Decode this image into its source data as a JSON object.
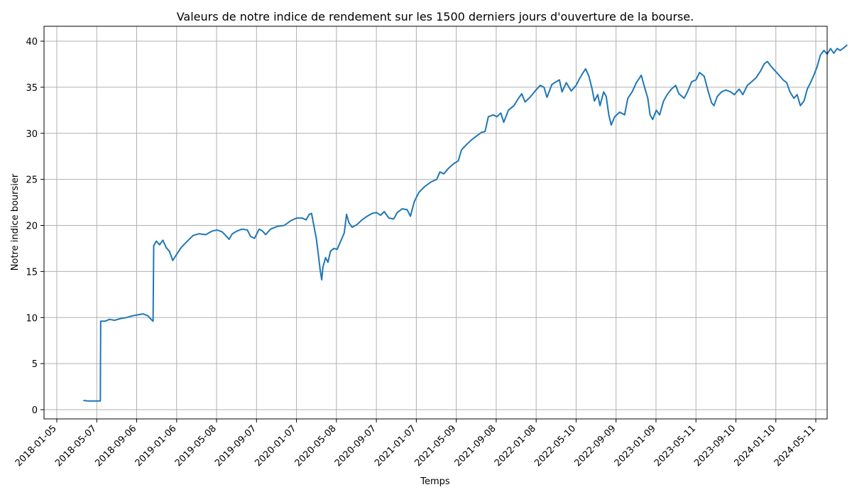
{
  "chart_data": {
    "type": "line",
    "title": "Valeurs de notre indice de rendement sur les 1500 derniers jours d'ouverture de la bourse.",
    "xlabel": "Temps",
    "ylabel": "Notre indice boursier",
    "grid": true,
    "xlim": [
      "2018-01-05",
      "2024-05-11"
    ],
    "ylim": [
      -1,
      41.6
    ],
    "x_ticks": [
      "2018-01-05",
      "2018-05-07",
      "2018-09-06",
      "2019-01-06",
      "2019-05-08",
      "2019-09-07",
      "2020-01-07",
      "2020-05-08",
      "2020-09-07",
      "2021-01-07",
      "2021-05-09",
      "2021-09-08",
      "2022-01-08",
      "2022-05-10",
      "2022-09-09",
      "2023-01-09",
      "2023-05-11",
      "2023-09-10",
      "2024-01-10",
      "2024-05-11"
    ],
    "y_ticks": [
      0,
      5,
      10,
      15,
      20,
      25,
      30,
      35,
      40
    ],
    "series": [
      {
        "color": "#1f77b4",
        "points": [
          [
            "2018-03-27",
            1.0
          ],
          [
            "2018-04-10",
            0.95
          ],
          [
            "2018-04-25",
            0.95
          ],
          [
            "2018-05-10",
            0.95
          ],
          [
            "2018-05-18",
            0.95
          ],
          [
            "2018-05-19",
            9.6
          ],
          [
            "2018-06-01",
            9.6
          ],
          [
            "2018-06-15",
            9.8
          ],
          [
            "2018-07-01",
            9.7
          ],
          [
            "2018-07-20",
            9.9
          ],
          [
            "2018-08-05",
            10.0
          ],
          [
            "2018-08-25",
            10.2
          ],
          [
            "2018-09-10",
            10.3
          ],
          [
            "2018-09-25",
            10.4
          ],
          [
            "2018-10-10",
            10.2
          ],
          [
            "2018-10-20",
            9.8
          ],
          [
            "2018-10-26",
            9.6
          ],
          [
            "2018-10-28",
            17.8
          ],
          [
            "2018-11-05",
            18.3
          ],
          [
            "2018-11-15",
            17.9
          ],
          [
            "2018-11-25",
            18.4
          ],
          [
            "2018-12-05",
            17.6
          ],
          [
            "2018-12-15",
            17.2
          ],
          [
            "2018-12-25",
            16.2
          ],
          [
            "2019-01-05",
            16.8
          ],
          [
            "2019-01-20",
            17.6
          ],
          [
            "2019-02-05",
            18.2
          ],
          [
            "2019-02-25",
            18.9
          ],
          [
            "2019-03-15",
            19.1
          ],
          [
            "2019-04-05",
            19.0
          ],
          [
            "2019-04-25",
            19.4
          ],
          [
            "2019-05-10",
            19.5
          ],
          [
            "2019-05-25",
            19.3
          ],
          [
            "2019-06-05",
            18.9
          ],
          [
            "2019-06-15",
            18.5
          ],
          [
            "2019-06-25",
            19.1
          ],
          [
            "2019-07-10",
            19.4
          ],
          [
            "2019-07-25",
            19.6
          ],
          [
            "2019-08-10",
            19.5
          ],
          [
            "2019-08-20",
            18.8
          ],
          [
            "2019-09-01",
            18.6
          ],
          [
            "2019-09-15",
            19.6
          ],
          [
            "2019-09-25",
            19.4
          ],
          [
            "2019-10-05",
            19.0
          ],
          [
            "2019-10-20",
            19.6
          ],
          [
            "2019-11-10",
            19.9
          ],
          [
            "2019-12-01",
            20.0
          ],
          [
            "2019-12-20",
            20.5
          ],
          [
            "2020-01-07",
            20.8
          ],
          [
            "2020-01-25",
            20.8
          ],
          [
            "2020-02-05",
            20.6
          ],
          [
            "2020-02-15",
            21.2
          ],
          [
            "2020-02-22",
            21.3
          ],
          [
            "2020-03-01",
            19.8
          ],
          [
            "2020-03-08",
            18.5
          ],
          [
            "2020-03-15",
            16.5
          ],
          [
            "2020-03-20",
            15.0
          ],
          [
            "2020-03-24",
            14.1
          ],
          [
            "2020-03-28",
            15.5
          ],
          [
            "2020-04-05",
            16.5
          ],
          [
            "2020-04-12",
            16.0
          ],
          [
            "2020-04-20",
            17.2
          ],
          [
            "2020-04-30",
            17.5
          ],
          [
            "2020-05-10",
            17.4
          ],
          [
            "2020-05-20",
            18.2
          ],
          [
            "2020-06-01",
            19.2
          ],
          [
            "2020-06-08",
            21.2
          ],
          [
            "2020-06-15",
            20.3
          ],
          [
            "2020-06-25",
            19.8
          ],
          [
            "2020-07-10",
            20.1
          ],
          [
            "2020-07-25",
            20.6
          ],
          [
            "2020-08-10",
            21.0
          ],
          [
            "2020-08-25",
            21.3
          ],
          [
            "2020-09-07",
            21.4
          ],
          [
            "2020-09-20",
            21.1
          ],
          [
            "2020-10-01",
            21.5
          ],
          [
            "2020-10-15",
            20.8
          ],
          [
            "2020-10-30",
            20.7
          ],
          [
            "2020-11-10",
            21.4
          ],
          [
            "2020-11-25",
            21.8
          ],
          [
            "2020-12-10",
            21.7
          ],
          [
            "2020-12-20",
            21.0
          ],
          [
            "2021-01-01",
            22.6
          ],
          [
            "2021-01-15",
            23.6
          ],
          [
            "2021-02-01",
            24.2
          ],
          [
            "2021-02-20",
            24.7
          ],
          [
            "2021-03-10",
            25.0
          ],
          [
            "2021-03-20",
            25.8
          ],
          [
            "2021-04-01",
            25.6
          ],
          [
            "2021-04-15",
            26.2
          ],
          [
            "2021-05-01",
            26.7
          ],
          [
            "2021-05-15",
            27.0
          ],
          [
            "2021-05-25",
            28.2
          ],
          [
            "2021-06-10",
            28.8
          ],
          [
            "2021-06-25",
            29.3
          ],
          [
            "2021-07-10",
            29.7
          ],
          [
            "2021-07-25",
            30.1
          ],
          [
            "2021-08-05",
            30.2
          ],
          [
            "2021-08-15",
            31.8
          ],
          [
            "2021-08-30",
            32.0
          ],
          [
            "2021-09-10",
            31.8
          ],
          [
            "2021-09-22",
            32.2
          ],
          [
            "2021-10-01",
            31.2
          ],
          [
            "2021-10-15",
            32.5
          ],
          [
            "2021-11-01",
            33.0
          ],
          [
            "2021-11-15",
            33.8
          ],
          [
            "2021-11-25",
            34.3
          ],
          [
            "2021-12-05",
            33.4
          ],
          [
            "2021-12-20",
            33.9
          ],
          [
            "2022-01-05",
            34.6
          ],
          [
            "2022-01-20",
            35.2
          ],
          [
            "2022-02-01",
            35.0
          ],
          [
            "2022-02-10",
            33.9
          ],
          [
            "2022-02-25",
            35.3
          ],
          [
            "2022-03-10",
            35.6
          ],
          [
            "2022-03-20",
            35.8
          ],
          [
            "2022-03-28",
            34.5
          ],
          [
            "2022-04-10",
            35.5
          ],
          [
            "2022-04-25",
            34.6
          ],
          [
            "2022-05-10",
            35.2
          ],
          [
            "2022-05-20",
            35.9
          ],
          [
            "2022-05-30",
            36.5
          ],
          [
            "2022-06-08",
            37.0
          ],
          [
            "2022-06-18",
            36.2
          ],
          [
            "2022-06-28",
            34.8
          ],
          [
            "2022-07-05",
            33.5
          ],
          [
            "2022-07-15",
            34.2
          ],
          [
            "2022-07-22",
            33.0
          ],
          [
            "2022-08-02",
            34.5
          ],
          [
            "2022-08-10",
            34.0
          ],
          [
            "2022-08-18",
            32.0
          ],
          [
            "2022-08-25",
            30.9
          ],
          [
            "2022-09-05",
            31.8
          ],
          [
            "2022-09-20",
            32.3
          ],
          [
            "2022-10-05",
            32.0
          ],
          [
            "2022-10-15",
            33.8
          ],
          [
            "2022-10-28",
            34.5
          ],
          [
            "2022-11-10",
            35.5
          ],
          [
            "2022-11-25",
            36.3
          ],
          [
            "2022-12-05",
            35.0
          ],
          [
            "2022-12-15",
            33.8
          ],
          [
            "2022-12-22",
            32.0
          ],
          [
            "2022-12-30",
            31.5
          ],
          [
            "2023-01-10",
            32.5
          ],
          [
            "2023-01-20",
            32.0
          ],
          [
            "2023-02-01",
            33.5
          ],
          [
            "2023-02-12",
            34.2
          ],
          [
            "2023-02-25",
            34.8
          ],
          [
            "2023-03-10",
            35.2
          ],
          [
            "2023-03-20",
            34.3
          ],
          [
            "2023-04-05",
            33.8
          ],
          [
            "2023-04-15",
            34.5
          ],
          [
            "2023-04-28",
            35.6
          ],
          [
            "2023-05-11",
            35.8
          ],
          [
            "2023-05-22",
            36.6
          ],
          [
            "2023-06-05",
            36.2
          ],
          [
            "2023-06-18",
            34.5
          ],
          [
            "2023-06-28",
            33.3
          ],
          [
            "2023-07-05",
            33.0
          ],
          [
            "2023-07-15",
            34.0
          ],
          [
            "2023-07-28",
            34.5
          ],
          [
            "2023-08-10",
            34.7
          ],
          [
            "2023-08-25",
            34.5
          ],
          [
            "2023-09-05",
            34.2
          ],
          [
            "2023-09-20",
            34.8
          ],
          [
            "2023-10-01",
            34.2
          ],
          [
            "2023-10-15",
            35.2
          ],
          [
            "2023-10-28",
            35.6
          ],
          [
            "2023-11-10",
            36.0
          ],
          [
            "2023-11-25",
            36.8
          ],
          [
            "2023-12-05",
            37.5
          ],
          [
            "2023-12-15",
            37.8
          ],
          [
            "2023-12-28",
            37.2
          ],
          [
            "2024-01-10",
            36.7
          ],
          [
            "2024-01-20",
            36.3
          ],
          [
            "2024-02-01",
            35.8
          ],
          [
            "2024-02-12",
            35.5
          ],
          [
            "2024-02-22",
            34.5
          ],
          [
            "2024-03-05",
            33.8
          ],
          [
            "2024-03-15",
            34.2
          ],
          [
            "2024-03-25",
            33.0
          ],
          [
            "2024-04-05",
            33.5
          ],
          [
            "2024-04-15",
            34.8
          ],
          [
            "2024-04-25",
            35.5
          ],
          [
            "2024-05-05",
            36.3
          ],
          [
            "2024-05-15",
            37.2
          ],
          [
            "2024-05-25",
            38.5
          ],
          [
            "2024-06-05",
            39.0
          ],
          [
            "2024-06-15",
            38.6
          ],
          [
            "2024-06-25",
            39.2
          ],
          [
            "2024-07-05",
            38.7
          ],
          [
            "2024-07-15",
            39.2
          ],
          [
            "2024-07-25",
            39.0
          ],
          [
            "2024-08-05",
            39.3
          ],
          [
            "2024-08-15",
            39.6
          ]
        ]
      }
    ]
  }
}
